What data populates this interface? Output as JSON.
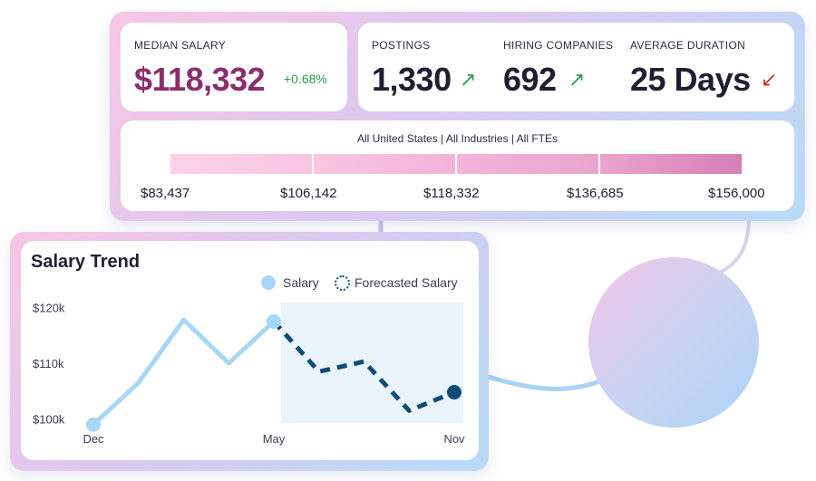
{
  "summary": {
    "median_salary": {
      "label": "MEDIAN SALARY",
      "value": "$118,332",
      "change": "+0.68%"
    },
    "postings": {
      "label": "POSTINGS",
      "value": "1,330",
      "trend": "up"
    },
    "hiring_companies": {
      "label": "HIRING COMPANIES",
      "value": "692",
      "trend": "up"
    },
    "average_duration": {
      "label": "AVERAGE DURATION",
      "value": "25 Days",
      "trend": "down"
    }
  },
  "distribution": {
    "filter_text": "All United States | All Industries | All FTEs",
    "values": [
      "$83,437",
      "$106,142",
      "$118,332",
      "$136,685",
      "$156,000"
    ]
  },
  "trend_card": {
    "title": "Salary Trend",
    "legend": {
      "actual": "Salary",
      "forecast": "Forecasted Salary"
    }
  },
  "chart_data": {
    "type": "line",
    "title": "Salary Trend",
    "x_labels": [
      "Dec",
      "May",
      "Nov"
    ],
    "y_ticks": [
      "$120k",
      "$110k",
      "$100k"
    ],
    "ylim": [
      97000,
      123000
    ],
    "series": [
      {
        "name": "Salary",
        "x": [
          0,
          1,
          2,
          3,
          4
        ],
        "y": [
          99000,
          106500,
          117800,
          110000,
          117500
        ]
      },
      {
        "name": "Forecasted Salary",
        "x": [
          4,
          5,
          6,
          7,
          8
        ],
        "y": [
          117500,
          108500,
          110300,
          101500,
          104800
        ]
      }
    ],
    "x_range": [
      0,
      8
    ],
    "colors": {
      "actual": "#a8d6f7",
      "forecast": "#0f4c75",
      "forecast_band": "#eaf4fd"
    }
  },
  "colors": {
    "median_value": "#8a2f6e",
    "change_positive": "#2e9b4f",
    "trend_up": "#2e9b4f",
    "trend_down": "#c0392b"
  }
}
